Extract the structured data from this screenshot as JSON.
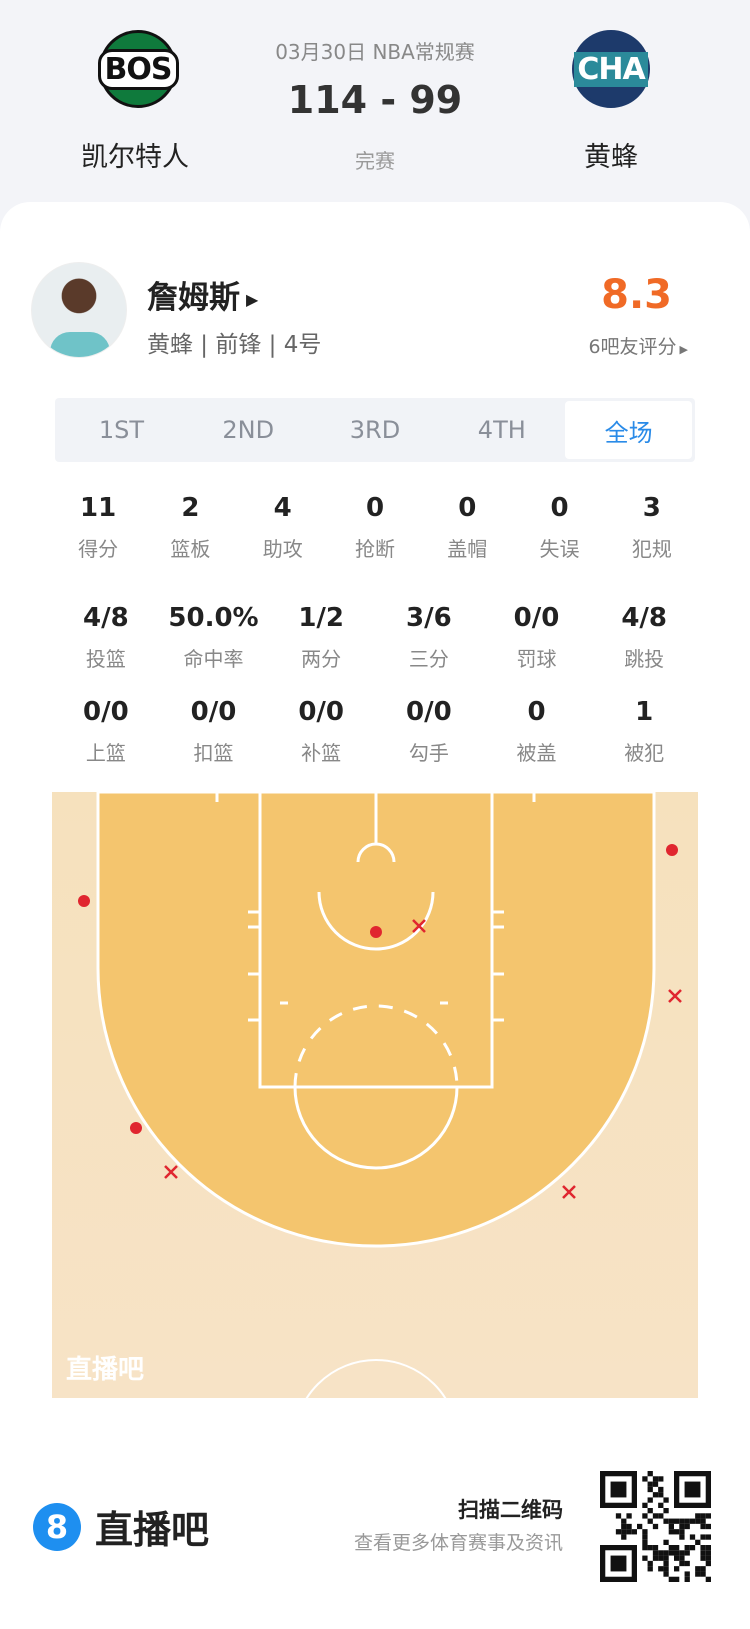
{
  "match": {
    "date": "03月30日 NBA常规赛",
    "score": "114 - 99",
    "status": "完赛",
    "home": {
      "abbr": "BOS",
      "name": "凯尔特人"
    },
    "away": {
      "abbr": "CHA",
      "name": "黄蜂"
    }
  },
  "player": {
    "name": "詹姆斯",
    "info": "黄蜂 | 前锋 | 4号",
    "rating": "8.3",
    "raters": "6吧友评分"
  },
  "tabs": [
    "1ST",
    "2ND",
    "3RD",
    "4TH",
    "全场"
  ],
  "active_tab": "全场",
  "stats_row1": [
    {
      "v": "11",
      "l": "得分"
    },
    {
      "v": "2",
      "l": "篮板"
    },
    {
      "v": "4",
      "l": "助攻"
    },
    {
      "v": "0",
      "l": "抢断"
    },
    {
      "v": "0",
      "l": "盖帽"
    },
    {
      "v": "0",
      "l": "失误"
    },
    {
      "v": "3",
      "l": "犯规"
    }
  ],
  "stats_row2": [
    {
      "v": "4/8",
      "l": "投篮"
    },
    {
      "v": "50.0%",
      "l": "命中率"
    },
    {
      "v": "1/2",
      "l": "两分"
    },
    {
      "v": "3/6",
      "l": "三分"
    },
    {
      "v": "0/0",
      "l": "罚球"
    },
    {
      "v": "4/8",
      "l": "跳投"
    }
  ],
  "stats_row3": [
    {
      "v": "0/0",
      "l": "上篮"
    },
    {
      "v": "0/0",
      "l": "扣篮"
    },
    {
      "v": "0/0",
      "l": "补篮"
    },
    {
      "v": "0/0",
      "l": "勾手"
    },
    {
      "v": "0",
      "l": "被盖"
    },
    {
      "v": "1",
      "l": "被犯"
    }
  ],
  "shot_chart": {
    "watermark": "直播吧",
    "made_color": "#e0262f",
    "shots": [
      {
        "result": "made"
      },
      {
        "result": "made"
      },
      {
        "result": "made"
      },
      {
        "result": "made"
      },
      {
        "result": "missed"
      },
      {
        "result": "missed"
      },
      {
        "result": "missed"
      },
      {
        "result": "missed"
      }
    ]
  },
  "footer": {
    "brand_icon": "8",
    "brand": "直播吧",
    "scan": "扫描二维码",
    "more": "查看更多体育赛事及资讯"
  }
}
